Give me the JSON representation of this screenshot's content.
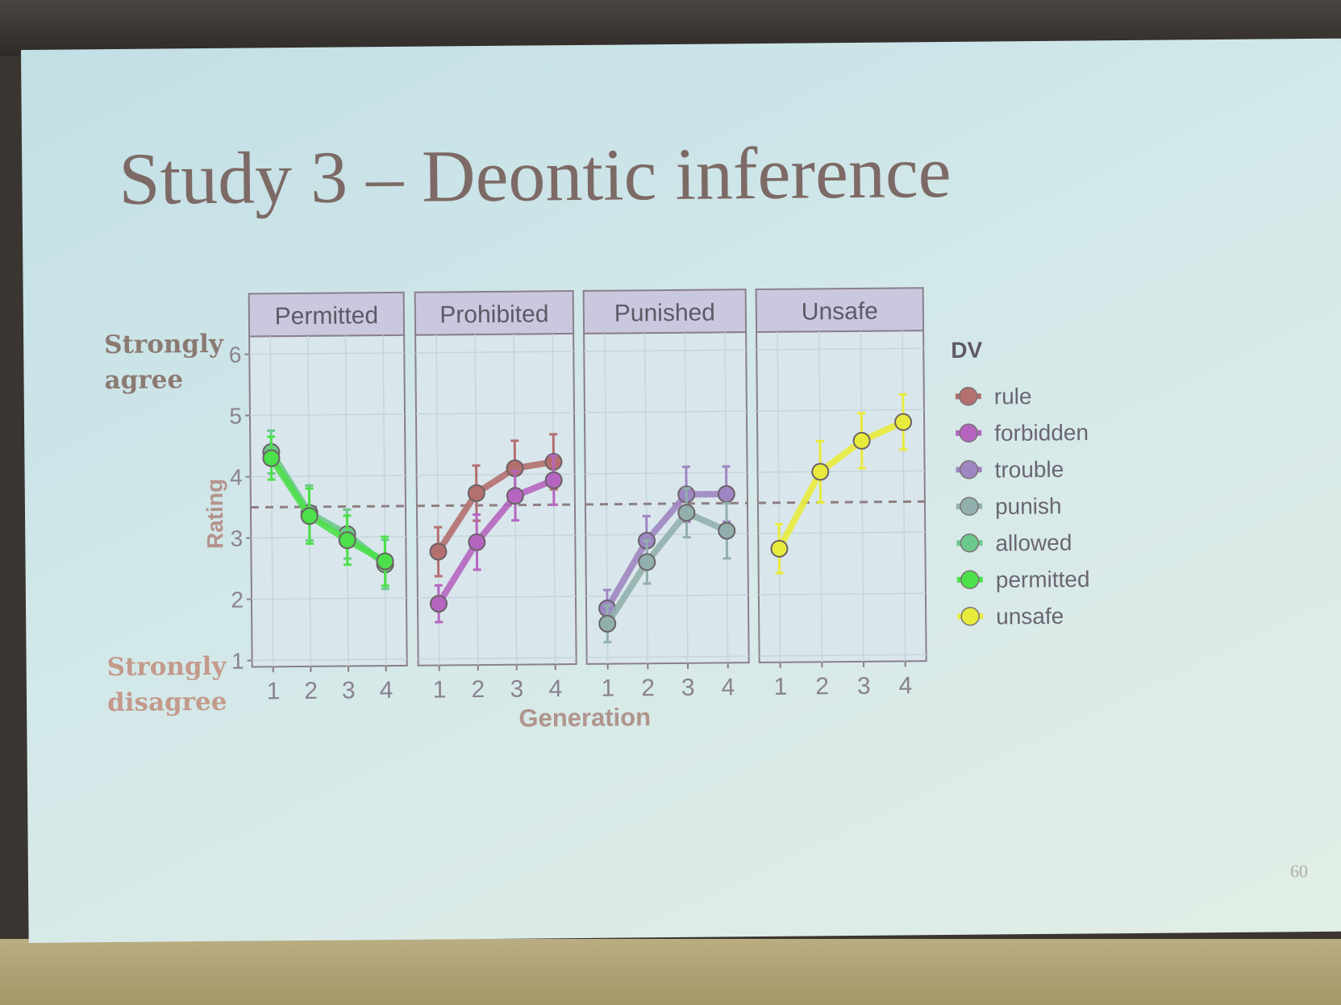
{
  "slide": {
    "title": "Study 3 – Deontic inference",
    "agree_label_line1": "Strongly",
    "agree_label_line2": "agree",
    "disagree_label_line1": "Strongly",
    "disagree_label_line2": "disagree",
    "page_number": "60"
  },
  "chart_data": {
    "type": "line",
    "xlabel": "Generation",
    "ylabel": "Rating",
    "ylim": [
      1,
      6
    ],
    "yticks": [
      1,
      2,
      3,
      4,
      5,
      6
    ],
    "x": [
      1,
      2,
      3,
      4
    ],
    "grid": true,
    "legend_title": "DV",
    "legend_position": "right",
    "legend": [
      {
        "name": "rule",
        "color": "#b46f6f"
      },
      {
        "name": "forbidden",
        "color": "#b565c0"
      },
      {
        "name": "trouble",
        "color": "#9e86c2"
      },
      {
        "name": "punish",
        "color": "#91b0ad"
      },
      {
        "name": "allowed",
        "color": "#6cc88c"
      },
      {
        "name": "permitted",
        "color": "#4ce04a"
      },
      {
        "name": "unsafe",
        "color": "#e8eb3c"
      }
    ],
    "panels": [
      {
        "title": "Permitted",
        "reference_line": 3.5,
        "series": [
          {
            "name": "allowed",
            "color": "#6cc88c",
            "values": [
              4.4,
              3.4,
              3.05,
              2.55
            ],
            "error": [
              0.35,
              0.45,
              0.4,
              0.4
            ]
          },
          {
            "name": "permitted",
            "color": "#4ce04a",
            "values": [
              4.3,
              3.35,
              2.95,
              2.6
            ],
            "error": [
              0.35,
              0.45,
              0.4,
              0.4
            ]
          }
        ]
      },
      {
        "title": "Prohibited",
        "reference_line": 3.5,
        "series": [
          {
            "name": "rule",
            "color": "#b46f6f",
            "values": [
              2.75,
              3.7,
              4.1,
              4.2
            ],
            "error": [
              0.4,
              0.45,
              0.45,
              0.45
            ]
          },
          {
            "name": "forbidden",
            "color": "#b565c0",
            "values": [
              1.9,
              2.9,
              3.65,
              3.9
            ],
            "error": [
              0.3,
              0.45,
              0.4,
              0.4
            ]
          }
        ]
      },
      {
        "title": "Punished",
        "reference_line": 3.5,
        "series": [
          {
            "name": "trouble",
            "color": "#9e86c2",
            "values": [
              1.8,
              2.9,
              3.65,
              3.65
            ],
            "error": [
              0.3,
              0.4,
              0.45,
              0.45
            ]
          },
          {
            "name": "punish",
            "color": "#91b0ad",
            "values": [
              1.55,
              2.55,
              3.35,
              3.05
            ],
            "error": [
              0.3,
              0.35,
              0.4,
              0.45
            ]
          }
        ]
      },
      {
        "title": "Unsafe",
        "reference_line": 3.5,
        "series": [
          {
            "name": "unsafe",
            "color": "#e8eb3c",
            "values": [
              2.75,
              4.0,
              4.5,
              4.8
            ],
            "error": [
              0.4,
              0.5,
              0.45,
              0.45
            ]
          }
        ]
      }
    ]
  }
}
